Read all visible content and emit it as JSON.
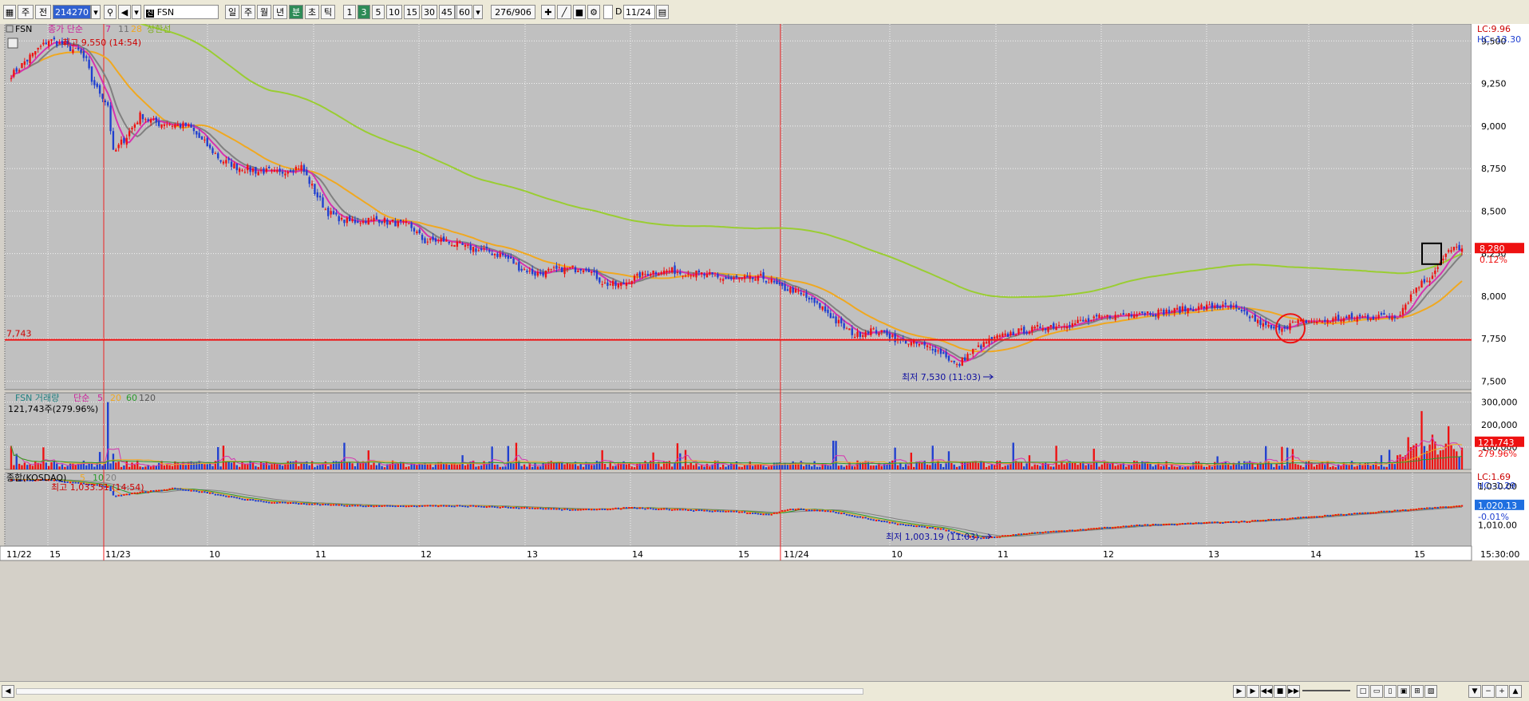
{
  "toolbar": {
    "period_label": "주",
    "prev_label": "전",
    "code": "214270",
    "name": "FSN",
    "tabs": [
      "일",
      "주",
      "월",
      "년",
      "분",
      "초",
      "틱"
    ],
    "active_tab": "분",
    "intervals": [
      "1",
      "3",
      "5",
      "10",
      "15",
      "30",
      "45",
      "60"
    ],
    "active_interval": "3",
    "interval_value": "3",
    "count": "276/906",
    "date_flag": "D",
    "date": "11/24"
  },
  "price_panel": {
    "legend_name": "FSN",
    "legend_ma": "종가 단순",
    "ma_periods": [
      "7",
      "11",
      "28"
    ],
    "ma_last": "상한선",
    "high_label": "최고 9,550 (14:54)",
    "low_label": "최저 7,530 (11:03)",
    "hline_label": "7,743",
    "lc_label": "LC:9.96",
    "hc_label": "HC:-13.30",
    "last_price": "8,280",
    "last_change": "0.12%",
    "y_ticks": [
      "9,500",
      "9,250",
      "9,000",
      "8,750",
      "8,500",
      "8,250",
      "8,000",
      "7,750",
      "7,500"
    ]
  },
  "volume_panel": {
    "legend_name": "FSN 거래량",
    "legend_ma": "단순",
    "ma_periods": [
      "5",
      "20",
      "60",
      "120"
    ],
    "current": "121,743주(279.96%)",
    "last_value": "121,743",
    "last_pct": "279.96%",
    "y_ticks": [
      "300,000",
      "200,000",
      "100,000"
    ]
  },
  "index_panel": {
    "legend_name": "종합(KOSDAQ)",
    "ma_periods": [
      "5",
      "10",
      "20"
    ],
    "high_label": "최고 1,033.51 (14:54)",
    "low_label": "최저 1,003.19 (11:03)",
    "lc_label": "LC:1.69",
    "hc_label": "HC:-1.29",
    "last_value": "1,020.13",
    "last_change": "-0.01%",
    "y_ticks": [
      "1,030.00",
      "1,010.00"
    ]
  },
  "time_axis": {
    "labels": [
      "11/22",
      "15",
      "11/23",
      "10",
      "11",
      "12",
      "13",
      "14",
      "15",
      "11/24",
      "10",
      "11",
      "12",
      "13",
      "14",
      "15"
    ],
    "end_time": "15:30:00"
  },
  "colors": {
    "up": "#ee1111",
    "down": "#1f3fd0",
    "bg": "#c0c0c0",
    "ma7": "#d633b0",
    "ma11": "#808080",
    "ma28": "#f0a820",
    "upper": "#9acd32"
  },
  "chart_data": {
    "type": "candlestick",
    "ylim": [
      7450,
      9600
    ],
    "anchors": [
      [
        0,
        9300
      ],
      [
        14,
        9510
      ],
      [
        19,
        9480
      ],
      [
        25,
        9440
      ],
      [
        28,
        9380
      ],
      [
        30,
        9270
      ],
      [
        36,
        9120
      ],
      [
        38,
        8840
      ],
      [
        42,
        8920
      ],
      [
        48,
        9060
      ],
      [
        54,
        9020
      ],
      [
        60,
        9010
      ],
      [
        66,
        9000
      ],
      [
        72,
        8900
      ],
      [
        78,
        8800
      ],
      [
        84,
        8760
      ],
      [
        90,
        8740
      ],
      [
        96,
        8730
      ],
      [
        100,
        8720
      ],
      [
        104,
        8750
      ],
      [
        108,
        8760
      ],
      [
        112,
        8640
      ],
      [
        118,
        8490
      ],
      [
        124,
        8440
      ],
      [
        130,
        8440
      ],
      [
        136,
        8450
      ],
      [
        142,
        8430
      ],
      [
        148,
        8420
      ],
      [
        154,
        8320
      ],
      [
        160,
        8330
      ],
      [
        166,
        8300
      ],
      [
        172,
        8280
      ],
      [
        178,
        8260
      ],
      [
        184,
        8230
      ],
      [
        190,
        8160
      ],
      [
        196,
        8130
      ],
      [
        202,
        8150
      ],
      [
        208,
        8160
      ],
      [
        214,
        8170
      ],
      [
        220,
        8080
      ],
      [
        226,
        8060
      ],
      [
        232,
        8110
      ],
      [
        238,
        8140
      ],
      [
        244,
        8150
      ],
      [
        250,
        8140
      ],
      [
        256,
        8130
      ],
      [
        262,
        8110
      ],
      [
        268,
        8100
      ],
      [
        274,
        8100
      ],
      [
        280,
        8110
      ],
      [
        286,
        8050
      ],
      [
        290,
        8040
      ],
      [
        296,
        7990
      ],
      [
        302,
        7930
      ],
      [
        308,
        7840
      ],
      [
        314,
        7770
      ],
      [
        320,
        7800
      ],
      [
        326,
        7780
      ],
      [
        330,
        7740
      ],
      [
        336,
        7720
      ],
      [
        342,
        7700
      ],
      [
        348,
        7650
      ],
      [
        352,
        7590
      ],
      [
        356,
        7650
      ],
      [
        360,
        7700
      ],
      [
        366,
        7750
      ],
      [
        372,
        7780
      ],
      [
        378,
        7800
      ],
      [
        384,
        7820
      ],
      [
        390,
        7830
      ],
      [
        396,
        7840
      ],
      [
        402,
        7860
      ],
      [
        408,
        7880
      ],
      [
        414,
        7890
      ],
      [
        420,
        7910
      ],
      [
        426,
        7900
      ],
      [
        432,
        7910
      ],
      [
        438,
        7920
      ],
      [
        444,
        7940
      ],
      [
        450,
        7940
      ],
      [
        456,
        7920
      ],
      [
        462,
        7870
      ],
      [
        466,
        7830
      ],
      [
        470,
        7800
      ],
      [
        476,
        7840
      ],
      [
        482,
        7850
      ],
      [
        488,
        7850
      ],
      [
        494,
        7870
      ],
      [
        500,
        7870
      ],
      [
        506,
        7880
      ],
      [
        512,
        7880
      ],
      [
        516,
        7880
      ],
      [
        520,
        7980
      ],
      [
        524,
        8070
      ],
      [
        528,
        8110
      ],
      [
        531,
        8180
      ],
      [
        534,
        8240
      ],
      [
        536,
        8270
      ],
      [
        539,
        8290
      ],
      [
        540,
        8280
      ]
    ],
    "n_bars": 541,
    "kosdaq_ylim": [
      999,
      1037
    ],
    "kosdaq_anchors": [
      [
        0,
        1033.5
      ],
      [
        14,
        1033.5
      ],
      [
        36,
        1030
      ],
      [
        38,
        1025
      ],
      [
        48,
        1027
      ],
      [
        60,
        1029
      ],
      [
        72,
        1027
      ],
      [
        84,
        1024
      ],
      [
        96,
        1022
      ],
      [
        110,
        1021
      ],
      [
        130,
        1020
      ],
      [
        150,
        1020
      ],
      [
        170,
        1020
      ],
      [
        190,
        1019
      ],
      [
        210,
        1018
      ],
      [
        230,
        1019
      ],
      [
        250,
        1018
      ],
      [
        270,
        1017
      ],
      [
        282,
        1015.5
      ],
      [
        290,
        1018.5
      ],
      [
        296,
        1018
      ],
      [
        306,
        1017
      ],
      [
        320,
        1013
      ],
      [
        330,
        1010.5
      ],
      [
        346,
        1008
      ],
      [
        356,
        1004
      ],
      [
        362,
        1003.5
      ],
      [
        380,
        1006
      ],
      [
        400,
        1008
      ],
      [
        420,
        1010
      ],
      [
        440,
        1011
      ],
      [
        460,
        1012
      ],
      [
        480,
        1014
      ],
      [
        500,
        1016
      ],
      [
        520,
        1018
      ],
      [
        540,
        1020.1
      ]
    ]
  }
}
